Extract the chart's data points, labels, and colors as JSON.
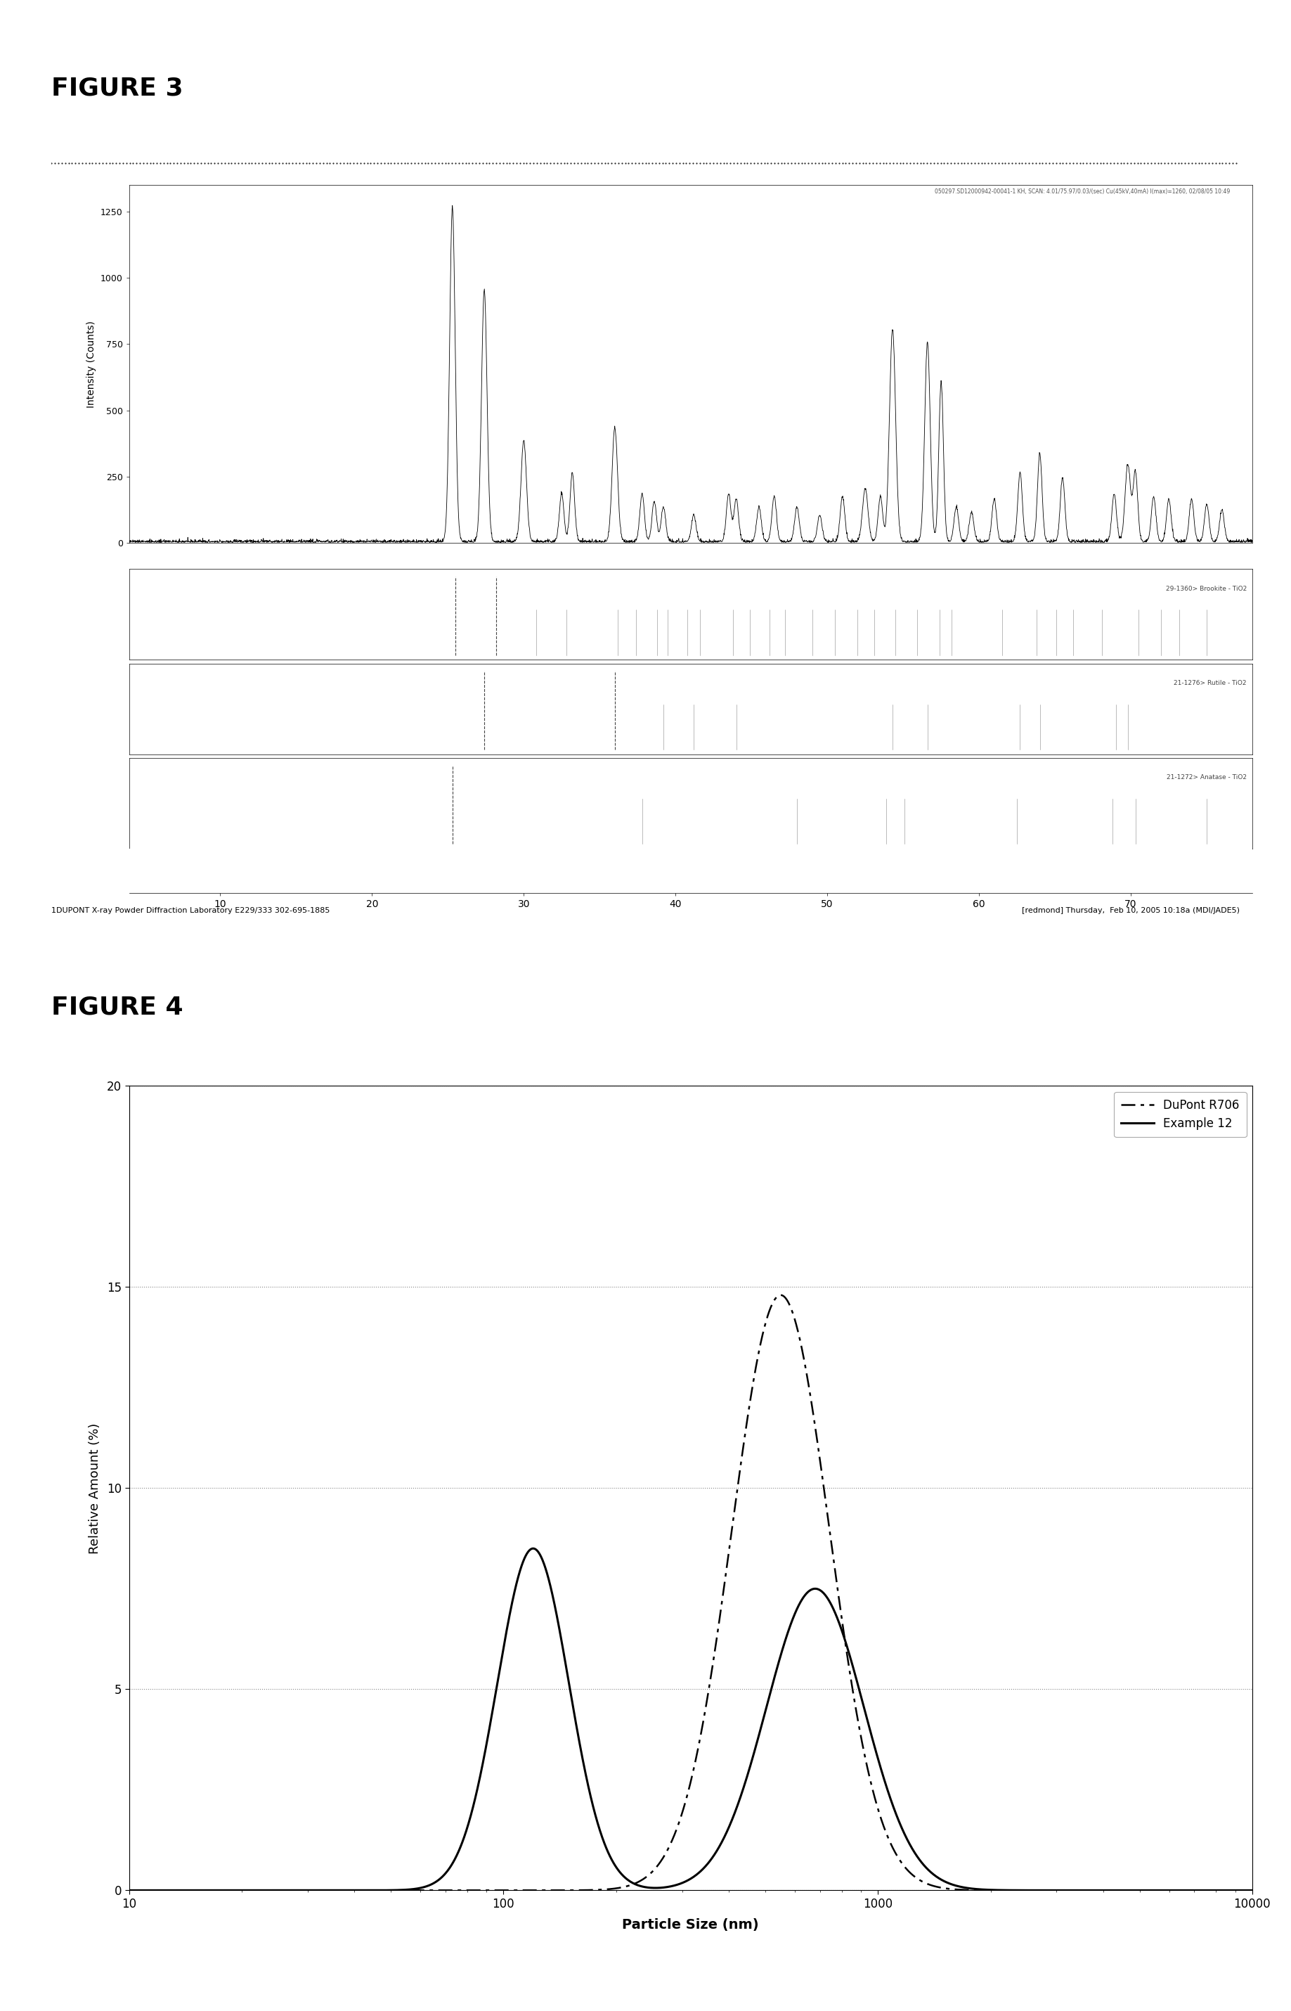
{
  "fig3_title": "FIGURE 3",
  "fig4_title": "FIGURE 4",
  "fig3_header": "050297.SD12000942-00041-1 KH, SCAN: 4.01/75.97/0.03/(sec) Cu(45kV,40mA) I(max)=1260, 02/08/05 10:49",
  "fig3_ylabel": "Intensity (Counts)",
  "fig3_xlim": [
    4,
    78
  ],
  "fig3_ylim": [
    0,
    1350
  ],
  "fig3_yticks": [
    0,
    250,
    500,
    750,
    1000,
    1250
  ],
  "fig3_xticks": [
    10,
    20,
    30,
    40,
    50,
    60,
    70
  ],
  "fig3_sub1_label": "29-1360> Brookite - TiO2",
  "fig3_sub2_label": "21-1276> Rutile - TiO2",
  "fig3_sub3_label": "21-1272> Anatase - TiO2",
  "fig3_footer_left": "1DUPONT X-ray Powder Diffraction Laboratory E229/333 302-695-1885",
  "fig3_footer_right": "[redmond] Thursday,  Feb 10, 2005 10:18a (MDI/JADE5)",
  "fig4_ylabel": "Relative Amount (%)",
  "fig4_xlabel": "Particle Size (nm)",
  "fig4_xlim_log": [
    10,
    10000
  ],
  "fig4_ylim": [
    0,
    20
  ],
  "fig4_yticks": [
    0,
    5,
    10,
    15,
    20
  ],
  "fig4_xticks_log": [
    10,
    100,
    1000,
    10000
  ],
  "fig4_legend": [
    "DuPont R706",
    "Example 12"
  ],
  "background_color": "#ffffff",
  "line_color": "#000000",
  "brookite_lines": [
    25.5,
    28.2,
    30.8,
    32.8,
    36.2,
    37.4,
    38.8,
    39.5,
    40.8,
    41.6,
    43.8,
    44.9,
    46.2,
    47.2,
    49.0,
    50.5,
    52.0,
    53.1,
    54.5,
    55.9,
    57.4,
    58.2,
    61.5,
    63.8,
    65.1,
    66.2,
    68.1,
    70.5,
    72.0,
    73.2,
    75.0
  ],
  "brookite_major": [
    25.5,
    28.2
  ],
  "rutile_lines": [
    27.4,
    36.0,
    39.2,
    41.2,
    44.0,
    54.3,
    56.6,
    62.7,
    64.0,
    69.0,
    69.8
  ],
  "rutile_major": [
    27.4,
    36.0
  ],
  "anatase_lines": [
    25.3,
    37.8,
    48.0,
    53.9,
    55.1,
    62.5,
    68.8,
    70.3,
    75.0
  ],
  "anatase_major": [
    25.3
  ]
}
